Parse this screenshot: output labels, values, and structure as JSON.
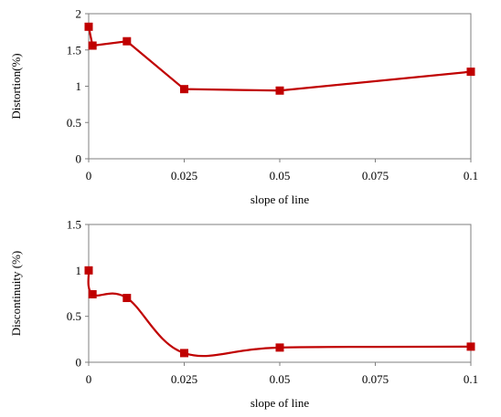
{
  "chart_data": [
    {
      "type": "line",
      "title": "",
      "xlabel": "slope of line",
      "ylabel": "Distortion(%)",
      "xlim": [
        0,
        0.1
      ],
      "ylim": [
        0,
        2
      ],
      "xticks": [
        "0",
        "0.025",
        "0.05",
        "0.075",
        "0.1"
      ],
      "yticks": [
        "0",
        "0.5",
        "1",
        "1.5",
        "2"
      ],
      "smooth": false,
      "grid": false,
      "series": [
        {
          "color": "#C00000",
          "marker": "square",
          "x": [
            0,
            0.001,
            0.01,
            0.025,
            0.05,
            0.1
          ],
          "values": [
            1.82,
            1.56,
            1.62,
            0.96,
            0.94,
            1.2
          ]
        }
      ]
    },
    {
      "type": "line",
      "title": "",
      "xlabel": "slope of line",
      "ylabel": "Discontinuity (%)",
      "xlim": [
        0,
        0.1
      ],
      "ylim": [
        0,
        1.5
      ],
      "xticks": [
        "0",
        "0.025",
        "0.05",
        "0.075",
        "0.1"
      ],
      "yticks": [
        "0",
        "0.5",
        "1",
        "1.5"
      ],
      "smooth": true,
      "grid": false,
      "series": [
        {
          "color": "#C00000",
          "marker": "square",
          "x": [
            0,
            0.001,
            0.01,
            0.025,
            0.05,
            0.1
          ],
          "values": [
            1.0,
            0.74,
            0.7,
            0.1,
            0.16,
            0.17
          ]
        }
      ]
    }
  ]
}
